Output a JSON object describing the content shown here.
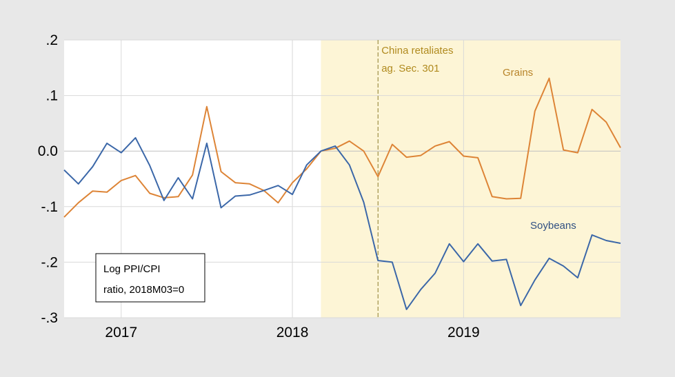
{
  "colors": {
    "background": "#e8e8e8",
    "plot_area": "#ffffff",
    "shade": "#fdf5d6",
    "grains": "#dd8436",
    "soybeans": "#3b67a8",
    "grid": "#d9d9d9",
    "zero_line": "#bfbfbf",
    "event_line": "#8a7a2a",
    "event_text": "#b08a1e",
    "grains_label": "#b8842a",
    "soybeans_label": "#2f4f82"
  },
  "chart_data": {
    "type": "line",
    "x_start": "2016M09",
    "x_end": "2019M12",
    "x_tick_labels": [
      "2017",
      "2018",
      "2019"
    ],
    "y_tick_labels": [
      ".2",
      ".1",
      "0.0",
      "-.1",
      "-.2",
      "-.3"
    ],
    "y_ticks": [
      0.2,
      0.1,
      0.0,
      -0.1,
      -0.2,
      -0.3
    ],
    "ylim": [
      -0.3,
      0.2
    ],
    "grid": true,
    "shaded_region": {
      "start": "2018M03",
      "end": "2019M12"
    },
    "event_line": {
      "x": "2018M07",
      "label_lines": [
        "China retaliates",
        "ag. Sec. 301"
      ]
    },
    "annotation_box": {
      "lines": [
        "Log PPI/CPI",
        "ratio, 2018M03=0"
      ]
    },
    "months": [
      "2016M09",
      "2016M10",
      "2016M11",
      "2016M12",
      "2017M01",
      "2017M02",
      "2017M03",
      "2017M04",
      "2017M05",
      "2017M06",
      "2017M07",
      "2017M08",
      "2017M09",
      "2017M10",
      "2017M11",
      "2017M12",
      "2018M01",
      "2018M02",
      "2018M03",
      "2018M04",
      "2018M05",
      "2018M06",
      "2018M07",
      "2018M08",
      "2018M09",
      "2018M10",
      "2018M11",
      "2018M12",
      "2019M01",
      "2019M02",
      "2019M03",
      "2019M04",
      "2019M05",
      "2019M06",
      "2019M07",
      "2019M08",
      "2019M09",
      "2019M10",
      "2019M11",
      "2019M12"
    ],
    "series": [
      {
        "name": "Grains",
        "values": [
          -0.119,
          -0.093,
          -0.072,
          -0.074,
          -0.053,
          -0.044,
          -0.076,
          -0.084,
          -0.082,
          -0.043,
          0.08,
          -0.037,
          -0.057,
          -0.059,
          -0.071,
          -0.093,
          -0.057,
          -0.032,
          0.0,
          0.005,
          0.018,
          0.0,
          -0.046,
          0.012,
          -0.011,
          -0.008,
          0.009,
          0.017,
          -0.009,
          -0.012,
          -0.082,
          -0.086,
          -0.085,
          0.072,
          0.131,
          0.002,
          -0.003,
          0.075,
          0.052,
          0.006
        ]
      },
      {
        "name": "Soybeans",
        "values": [
          -0.034,
          -0.059,
          -0.028,
          0.014,
          -0.003,
          0.024,
          -0.026,
          -0.089,
          -0.048,
          -0.086,
          0.014,
          -0.102,
          -0.081,
          -0.079,
          -0.071,
          -0.062,
          -0.078,
          -0.025,
          0.0,
          0.009,
          -0.025,
          -0.092,
          -0.197,
          -0.2,
          -0.285,
          -0.249,
          -0.22,
          -0.167,
          -0.199,
          -0.167,
          -0.198,
          -0.195,
          -0.278,
          -0.232,
          -0.193,
          -0.207,
          -0.228,
          -0.151,
          -0.161,
          -0.166
        ]
      }
    ]
  }
}
